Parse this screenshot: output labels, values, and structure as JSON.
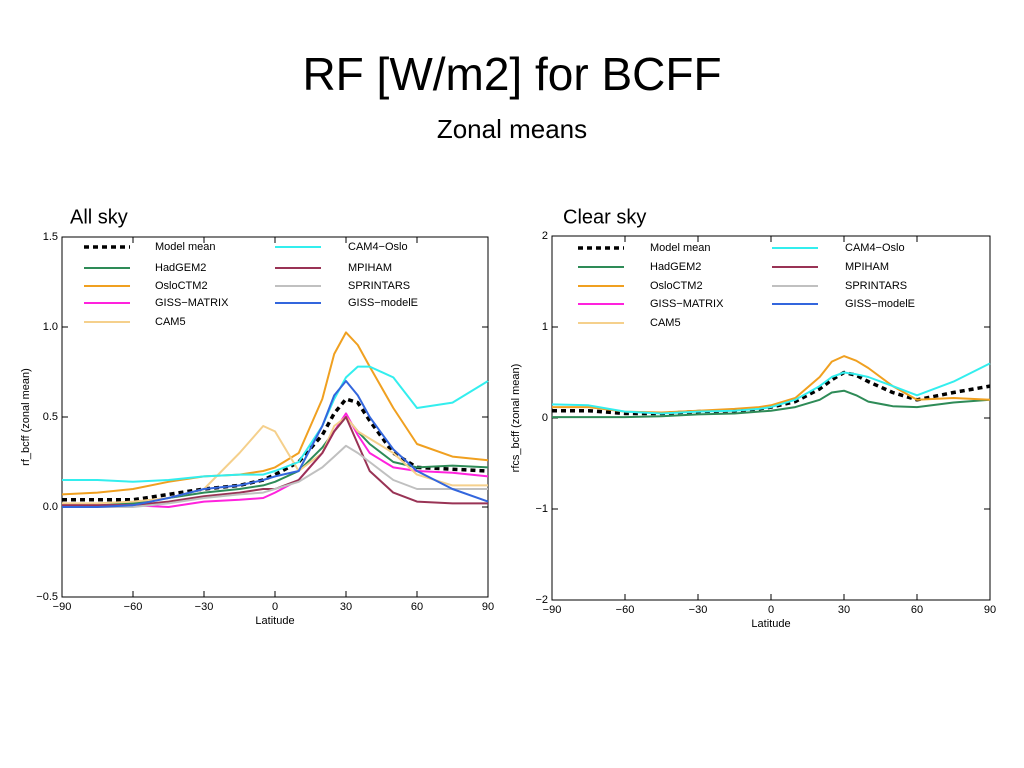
{
  "title": "RF [W/m2] for BCFF",
  "subtitle": "Zonal means",
  "chart_data": [
    {
      "type": "line",
      "title": "All sky",
      "xlabel": "Latitude",
      "ylabel": "rf_bcff (zonal mean)",
      "x": [
        -90,
        -75,
        -60,
        -45,
        -30,
        -15,
        -5,
        0,
        10,
        20,
        25,
        30,
        35,
        40,
        50,
        60,
        75,
        90
      ],
      "xlim": [
        -90,
        90
      ],
      "ylim": [
        -0.5,
        1.5
      ],
      "xticks": [
        {
          "value": -90,
          "label": "−90"
        },
        {
          "value": -60,
          "label": "−60"
        },
        {
          "value": -30,
          "label": "−30"
        },
        0,
        30,
        60,
        90
      ],
      "yticks": [
        {
          "value": -0.5,
          "label": "−0.5"
        },
        {
          "value": 0,
          "label": "0.0"
        },
        0.5,
        {
          "value": 1,
          "label": "1.0"
        },
        1.5
      ],
      "series": [
        {
          "name": "Model mean",
          "color": "#000000",
          "dashed": true,
          "values": [
            0.04,
            0.04,
            0.04,
            0.07,
            0.1,
            0.12,
            0.15,
            0.18,
            0.25,
            0.4,
            0.52,
            0.6,
            0.58,
            0.48,
            0.3,
            0.22,
            0.21,
            0.2
          ]
        },
        {
          "name": "HadGEM2",
          "color": "#2e8b57",
          "values": [
            0.01,
            0.01,
            0.02,
            0.05,
            0.08,
            0.1,
            0.12,
            0.14,
            0.2,
            0.33,
            0.42,
            0.5,
            0.42,
            0.35,
            0.25,
            0.22,
            0.23,
            0.22
          ]
        },
        {
          "name": "OsloCTM2",
          "color": "#f0a020",
          "values": [
            0.07,
            0.08,
            0.1,
            0.14,
            0.17,
            0.18,
            0.2,
            0.22,
            0.3,
            0.6,
            0.85,
            0.97,
            0.9,
            0.78,
            0.55,
            0.35,
            0.28,
            0.26
          ]
        },
        {
          "name": "GISS−MATRIX",
          "color": "#ff22dd",
          "values": [
            0.01,
            0.01,
            0.01,
            0.0,
            0.03,
            0.04,
            0.05,
            0.08,
            0.15,
            0.3,
            0.42,
            0.52,
            0.4,
            0.3,
            0.22,
            0.2,
            0.19,
            0.17
          ]
        },
        {
          "name": "CAM5",
          "color": "#f5d08c",
          "values": [
            0.02,
            0.02,
            0.03,
            0.05,
            0.1,
            0.3,
            0.45,
            0.42,
            0.2,
            0.3,
            0.45,
            0.5,
            0.42,
            0.38,
            0.3,
            0.18,
            0.12,
            0.12
          ]
        },
        {
          "name": "CAM4−Oslo",
          "color": "#33eeee",
          "values": [
            0.15,
            0.15,
            0.14,
            0.15,
            0.17,
            0.18,
            0.18,
            0.2,
            0.25,
            0.45,
            0.6,
            0.72,
            0.78,
            0.78,
            0.72,
            0.55,
            0.58,
            0.7
          ]
        },
        {
          "name": "MPIHAM",
          "color": "#993355",
          "values": [
            0.01,
            0.01,
            0.01,
            0.03,
            0.06,
            0.08,
            0.1,
            0.1,
            0.15,
            0.3,
            0.42,
            0.5,
            0.35,
            0.2,
            0.08,
            0.03,
            0.02,
            0.02
          ]
        },
        {
          "name": "SPRINTARS",
          "color": "#c0c0c0",
          "values": [
            0.0,
            0.0,
            0.0,
            0.02,
            0.05,
            0.07,
            0.08,
            0.1,
            0.14,
            0.22,
            0.28,
            0.34,
            0.3,
            0.25,
            0.15,
            0.1,
            0.1,
            0.1
          ]
        },
        {
          "name": "GISS−modelE",
          "color": "#3366dd",
          "values": [
            0.0,
            0.0,
            0.01,
            0.05,
            0.1,
            0.12,
            0.15,
            0.17,
            0.2,
            0.45,
            0.62,
            0.7,
            0.62,
            0.5,
            0.32,
            0.2,
            0.1,
            0.03
          ]
        }
      ]
    },
    {
      "type": "line",
      "title": "Clear sky",
      "xlabel": "Latitude",
      "ylabel": "rfcs_bcff (zonal mean)",
      "x": [
        -90,
        -75,
        -60,
        -45,
        -30,
        -15,
        -5,
        0,
        10,
        20,
        25,
        30,
        35,
        40,
        50,
        60,
        75,
        90
      ],
      "xlim": [
        -90,
        90
      ],
      "ylim": [
        -2,
        2
      ],
      "xticks": [
        {
          "value": -90,
          "label": "−90"
        },
        {
          "value": -60,
          "label": "−60"
        },
        {
          "value": -30,
          "label": "−30"
        },
        0,
        30,
        60,
        90
      ],
      "yticks": [
        {
          "value": -2,
          "label": "−2"
        },
        {
          "value": -1,
          "label": "−1"
        },
        0,
        1,
        2
      ],
      "series": [
        {
          "name": "Model mean",
          "color": "#000000",
          "dashed": true,
          "values": [
            0.08,
            0.08,
            0.05,
            0.05,
            0.07,
            0.08,
            0.1,
            0.12,
            0.18,
            0.32,
            0.42,
            0.5,
            0.47,
            0.4,
            0.28,
            0.2,
            0.28,
            0.35
          ]
        },
        {
          "name": "HadGEM2",
          "color": "#2e8b57",
          "values": [
            0.01,
            0.01,
            0.01,
            0.02,
            0.04,
            0.05,
            0.07,
            0.08,
            0.12,
            0.2,
            0.28,
            0.3,
            0.25,
            0.18,
            0.13,
            0.12,
            0.17,
            0.2
          ]
        },
        {
          "name": "OsloCTM2",
          "color": "#f0a020",
          "values": [
            0.12,
            0.12,
            0.07,
            0.06,
            0.08,
            0.1,
            0.12,
            0.14,
            0.22,
            0.45,
            0.62,
            0.68,
            0.63,
            0.55,
            0.35,
            0.2,
            0.22,
            0.2
          ]
        },
        {
          "name": "GISS−MATRIX",
          "color": "#ff22dd",
          "values": [
            null,
            null,
            null,
            null,
            null,
            null,
            null,
            null,
            null,
            null,
            null,
            null,
            null,
            null,
            null,
            null,
            null,
            null
          ]
        },
        {
          "name": "CAM5",
          "color": "#f5d08c",
          "values": [
            null,
            null,
            null,
            null,
            null,
            null,
            null,
            null,
            null,
            null,
            null,
            null,
            null,
            null,
            null,
            null,
            null,
            null
          ]
        },
        {
          "name": "CAM4−Oslo",
          "color": "#33eeee",
          "values": [
            0.15,
            0.14,
            0.07,
            0.05,
            0.07,
            0.08,
            0.1,
            0.12,
            0.2,
            0.35,
            0.45,
            0.5,
            0.48,
            0.45,
            0.35,
            0.25,
            0.4,
            0.6
          ]
        },
        {
          "name": "MPIHAM",
          "color": "#993355",
          "values": [
            null,
            null,
            null,
            null,
            null,
            null,
            null,
            null,
            null,
            null,
            null,
            null,
            null,
            null,
            null,
            null,
            null,
            null
          ]
        },
        {
          "name": "SPRINTARS",
          "color": "#c0c0c0",
          "values": [
            null,
            null,
            null,
            null,
            null,
            null,
            null,
            null,
            null,
            null,
            null,
            null,
            null,
            null,
            null,
            null,
            null,
            null
          ]
        },
        {
          "name": "GISS−modelE",
          "color": "#3366dd",
          "values": [
            null,
            null,
            null,
            null,
            null,
            null,
            null,
            null,
            null,
            null,
            null,
            null,
            null,
            null,
            null,
            null,
            null,
            null
          ]
        }
      ]
    }
  ]
}
